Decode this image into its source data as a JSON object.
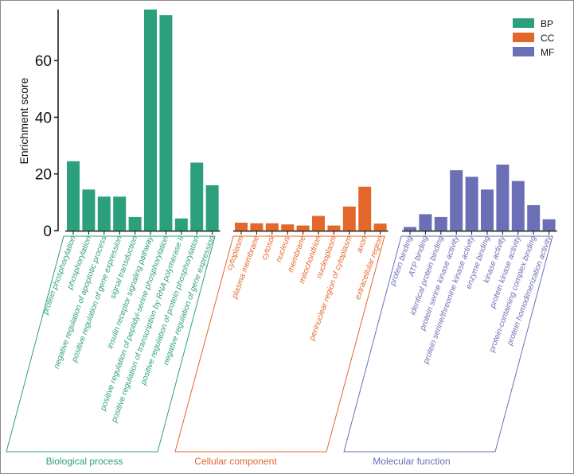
{
  "chart_data": {
    "type": "bar",
    "ylabel": "Enrichment score",
    "ylim": [
      0,
      78
    ],
    "yticks": [
      0,
      20,
      40,
      60
    ],
    "grid": false,
    "legend_position": "top-right",
    "series": [
      {
        "name": "BP",
        "group_title": "Biological process",
        "color": "#2ca07c",
        "categories": [
          "protein phosphorylation",
          "phosphorylation",
          "negative regulation of apoptotic process",
          "positive regulation of gene expression",
          "signal transduction",
          "insulin receptor signaling pathway",
          "positive regulation of peptidyl-serine phosphorylation",
          "positive regulation of transcription by RNA polymerase II",
          "positive regulation of protein phosphorylation",
          "negative regulation of gene expression"
        ],
        "values": [
          24.5,
          14.5,
          12,
          12,
          4.8,
          78,
          76,
          4.3,
          24,
          16
        ]
      },
      {
        "name": "CC",
        "group_title": "Cellular component",
        "color": "#e3672a",
        "categories": [
          "cytoplasm",
          "plasma membrane",
          "cytosol",
          "nucleus",
          "membrane",
          "mitochondrion",
          "nucleoplasm",
          "perinuclear region of cytoplasm",
          "axon",
          "extracellular region"
        ],
        "values": [
          2.8,
          2.6,
          2.6,
          2.2,
          1.8,
          5.2,
          1.8,
          8.5,
          15.5,
          2.5
        ]
      },
      {
        "name": "MF",
        "group_title": "Molecular function",
        "color": "#6b6fb5",
        "categories": [
          "protein binding",
          "ATP binding",
          "identical protein binding",
          "protein serine kinase activity",
          "protein serine/threonine kinase activity",
          "enzyme binding",
          "kinase activity",
          "protein kinase activity",
          "protein-containing complex binding",
          "protein homodimerization activity"
        ],
        "values": [
          1.3,
          5.8,
          4.8,
          21.3,
          19,
          14.5,
          23.3,
          17.5,
          9,
          4
        ]
      }
    ]
  }
}
